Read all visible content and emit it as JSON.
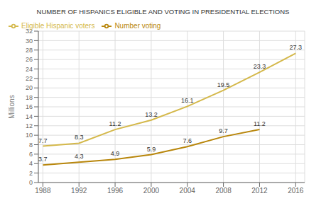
{
  "chart_data": {
    "type": "line",
    "title": "NUMBER OF HISPANICS ELIGIBLE AND VOTING IN PRESIDENTIAL ELECTIONS",
    "ylabel": "Millions",
    "x": [
      1988,
      1992,
      1996,
      2000,
      2004,
      2008,
      2012,
      2016
    ],
    "series": [
      {
        "name": "Eligible Hispanic voters",
        "color": "#d4b84a",
        "values": [
          7.7,
          8.3,
          11.2,
          13.2,
          16.1,
          19.5,
          23.3,
          27.3
        ]
      },
      {
        "name": "Number voting",
        "color": "#b8860b",
        "values": [
          3.7,
          4.3,
          4.9,
          5.9,
          7.6,
          9.7,
          11.2,
          null
        ]
      }
    ],
    "xlim": [
      1987.5,
      2017
    ],
    "xticks": [
      1988,
      1992,
      1996,
      2000,
      2004,
      2008,
      2012,
      2016
    ],
    "ylim": [
      0,
      32
    ],
    "yticks": [
      0,
      2,
      4,
      6,
      8,
      10,
      12,
      14,
      16,
      18,
      20,
      22,
      24,
      26,
      28,
      30,
      32
    ],
    "grid": true,
    "legend": "upper left",
    "data_labels": true
  }
}
